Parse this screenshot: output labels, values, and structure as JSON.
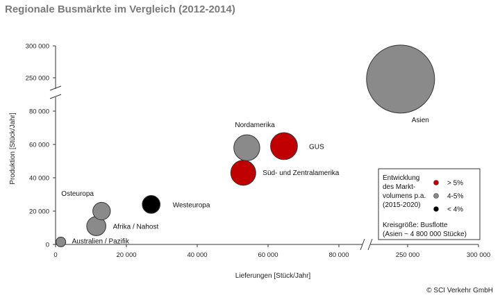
{
  "title": "Regionale Busmärkte im Vergleich (2012-2014)",
  "copyright": "© SCI Verkehr GmbH",
  "chart_data": {
    "type": "bubble",
    "title": "Regionale Busmärkte im Vergleich (2012-2014)",
    "xlabel": "Lieferungen [Stück/Jahr]",
    "ylabel": "Produktion [Stück/Jahr]",
    "x_axis": {
      "broken": true,
      "lower_range": [
        0,
        80000
      ],
      "upper_range": [
        250000,
        300000
      ],
      "ticks": [
        {
          "value": 0,
          "label": "0"
        },
        {
          "value": 20000,
          "label": "20 000"
        },
        {
          "value": 40000,
          "label": "40 000"
        },
        {
          "value": 60000,
          "label": "60 000"
        },
        {
          "value": 80000,
          "label": "80 000"
        },
        {
          "value": 250000,
          "label": "250 000"
        },
        {
          "value": 300000,
          "label": "300 000"
        }
      ]
    },
    "y_axis": {
      "broken": true,
      "lower_range": [
        0,
        80000
      ],
      "upper_range": [
        250000,
        300000
      ],
      "ticks": [
        {
          "value": 0,
          "label": "0"
        },
        {
          "value": 20000,
          "label": "20 000"
        },
        {
          "value": 40000,
          "label": "40 000"
        },
        {
          "value": 60000,
          "label": "60 000"
        },
        {
          "value": 80000,
          "label": "80 000"
        },
        {
          "value": 250000,
          "label": "250 000"
        },
        {
          "value": 300000,
          "label": "300 000"
        }
      ]
    },
    "categories": [
      {
        "key": "high",
        "label": "> 5%",
        "color": "#c00000"
      },
      {
        "key": "mid",
        "label": "4-5%",
        "color": "#8a8a8a"
      },
      {
        "key": "low",
        "label": "< 4%",
        "color": "#000000"
      }
    ],
    "points": [
      {
        "name": "Asien",
        "x": 245000,
        "y": 248000,
        "fleet_rel": 4800000,
        "category": "mid"
      },
      {
        "name": "Nordamerika",
        "x": 54000,
        "y": 58000,
        "fleet_rel": 700000,
        "category": "mid"
      },
      {
        "name": "GUS",
        "x": 64500,
        "y": 59000,
        "fleet_rel": 750000,
        "category": "high"
      },
      {
        "name": "Süd- und Zentralamerika",
        "x": 53000,
        "y": 43000,
        "fleet_rel": 650000,
        "category": "high"
      },
      {
        "name": "Westeuropa",
        "x": 27000,
        "y": 24000,
        "fleet_rel": 330000,
        "category": "low"
      },
      {
        "name": "Osteuropa",
        "x": 13000,
        "y": 20000,
        "fleet_rel": 320000,
        "category": "mid"
      },
      {
        "name": "Afrika / Nahost",
        "x": 11500,
        "y": 11000,
        "fleet_rel": 380000,
        "category": "mid"
      },
      {
        "name": "Australien / Pazifik",
        "x": 1500,
        "y": 1500,
        "fleet_rel": 60000,
        "category": "mid"
      }
    ],
    "legend": {
      "placement": "bottom-right",
      "heading": [
        "Entwicklung",
        "des Markt-",
        "volumens p.a.",
        "(2015-2020)"
      ],
      "size_note": [
        "Kreisgröße: Busflotte",
        "(Asien ~ 4 800 000 Stücke)"
      ]
    },
    "grid": false
  }
}
